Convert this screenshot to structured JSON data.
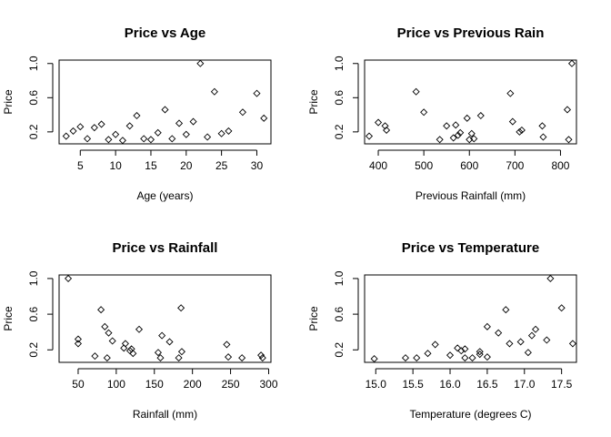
{
  "chart_data": [
    {
      "type": "scatter",
      "title": "Price vs Age",
      "xlabel": "Age (years)",
      "ylabel": "Price",
      "xlim": [
        2,
        32
      ],
      "ylim": [
        0.06,
        1.04
      ],
      "xticks": [
        5,
        10,
        15,
        20,
        25,
        30
      ],
      "yticks": [
        0.2,
        0.6,
        1.0
      ],
      "ytick_labels": [
        "0.2",
        "0.6",
        "1.0"
      ],
      "points": [
        {
          "x": 3,
          "y": 0.15
        },
        {
          "x": 4,
          "y": 0.21
        },
        {
          "x": 5,
          "y": 0.26
        },
        {
          "x": 6,
          "y": 0.12
        },
        {
          "x": 7,
          "y": 0.25
        },
        {
          "x": 8,
          "y": 0.29
        },
        {
          "x": 9,
          "y": 0.11
        },
        {
          "x": 10,
          "y": 0.17
        },
        {
          "x": 11,
          "y": 0.1
        },
        {
          "x": 12,
          "y": 0.27
        },
        {
          "x": 13,
          "y": 0.39
        },
        {
          "x": 14,
          "y": 0.12
        },
        {
          "x": 15,
          "y": 0.11
        },
        {
          "x": 16,
          "y": 0.19
        },
        {
          "x": 17,
          "y": 0.46
        },
        {
          "x": 18,
          "y": 0.12
        },
        {
          "x": 19,
          "y": 0.3
        },
        {
          "x": 20,
          "y": 0.17
        },
        {
          "x": 21,
          "y": 0.32
        },
        {
          "x": 22,
          "y": 1.0
        },
        {
          "x": 23,
          "y": 0.14
        },
        {
          "x": 24,
          "y": 0.67
        },
        {
          "x": 25,
          "y": 0.18
        },
        {
          "x": 26,
          "y": 0.21
        },
        {
          "x": 28,
          "y": 0.43
        },
        {
          "x": 30,
          "y": 0.65
        },
        {
          "x": 31,
          "y": 0.36
        }
      ]
    },
    {
      "type": "scatter",
      "title": "Price vs Previous Rain",
      "xlabel": "Previous Rainfall (mm)",
      "ylabel": "Price",
      "xlim": [
        370,
        835
      ],
      "ylim": [
        0.06,
        1.04
      ],
      "xticks": [
        400,
        500,
        600,
        700,
        800
      ],
      "yticks": [
        0.2,
        0.6,
        1.0
      ],
      "ytick_labels": [
        "0.2",
        "0.6",
        "1.0"
      ],
      "points": [
        {
          "x": 380,
          "y": 0.15
        },
        {
          "x": 400,
          "y": 0.31
        },
        {
          "x": 415,
          "y": 0.27
        },
        {
          "x": 418,
          "y": 0.22
        },
        {
          "x": 483,
          "y": 0.67
        },
        {
          "x": 500,
          "y": 0.43
        },
        {
          "x": 535,
          "y": 0.11
        },
        {
          "x": 550,
          "y": 0.27
        },
        {
          "x": 565,
          "y": 0.13
        },
        {
          "x": 570,
          "y": 0.28
        },
        {
          "x": 575,
          "y": 0.16
        },
        {
          "x": 580,
          "y": 0.19
        },
        {
          "x": 595,
          "y": 0.36
        },
        {
          "x": 600,
          "y": 0.11
        },
        {
          "x": 605,
          "y": 0.18
        },
        {
          "x": 610,
          "y": 0.12
        },
        {
          "x": 625,
          "y": 0.39
        },
        {
          "x": 690,
          "y": 0.65
        },
        {
          "x": 695,
          "y": 0.32
        },
        {
          "x": 710,
          "y": 0.2
        },
        {
          "x": 715,
          "y": 0.22
        },
        {
          "x": 760,
          "y": 0.27
        },
        {
          "x": 762,
          "y": 0.14
        },
        {
          "x": 815,
          "y": 0.46
        },
        {
          "x": 818,
          "y": 0.11
        },
        {
          "x": 825,
          "y": 1.0
        }
      ]
    },
    {
      "type": "scatter",
      "title": "Price vs Rainfall",
      "xlabel": "Rainfall (mm)",
      "ylabel": "Price",
      "xlim": [
        25,
        303
      ],
      "ylim": [
        0.06,
        1.04
      ],
      "xticks": [
        50,
        100,
        150,
        200,
        250,
        300
      ],
      "yticks": [
        0.2,
        0.6,
        1.0
      ],
      "ytick_labels": [
        "0.2",
        "0.6",
        "1.0"
      ],
      "points": [
        {
          "x": 37,
          "y": 1.0
        },
        {
          "x": 50,
          "y": 0.32
        },
        {
          "x": 50,
          "y": 0.27
        },
        {
          "x": 72,
          "y": 0.13
        },
        {
          "x": 80,
          "y": 0.65
        },
        {
          "x": 85,
          "y": 0.46
        },
        {
          "x": 88,
          "y": 0.11
        },
        {
          "x": 90,
          "y": 0.39
        },
        {
          "x": 95,
          "y": 0.3
        },
        {
          "x": 110,
          "y": 0.22
        },
        {
          "x": 112,
          "y": 0.27
        },
        {
          "x": 118,
          "y": 0.19
        },
        {
          "x": 120,
          "y": 0.21
        },
        {
          "x": 122,
          "y": 0.16
        },
        {
          "x": 130,
          "y": 0.43
        },
        {
          "x": 155,
          "y": 0.17
        },
        {
          "x": 158,
          "y": 0.11
        },
        {
          "x": 160,
          "y": 0.36
        },
        {
          "x": 170,
          "y": 0.29
        },
        {
          "x": 182,
          "y": 0.11
        },
        {
          "x": 185,
          "y": 0.67
        },
        {
          "x": 186,
          "y": 0.18
        },
        {
          "x": 245,
          "y": 0.26
        },
        {
          "x": 247,
          "y": 0.12
        },
        {
          "x": 265,
          "y": 0.11
        },
        {
          "x": 290,
          "y": 0.14
        },
        {
          "x": 292,
          "y": 0.11
        }
      ]
    },
    {
      "type": "scatter",
      "title": "Price vs Temperature",
      "xlabel": "Temperature (degrees C)",
      "ylabel": "Price",
      "xlim": [
        14.85,
        17.7
      ],
      "ylim": [
        0.06,
        1.04
      ],
      "xticks": [
        15.0,
        15.5,
        16.0,
        16.5,
        17.0,
        17.5
      ],
      "xtick_labels": [
        "15.0",
        "15.5",
        "16.0",
        "16.5",
        "17.0",
        "17.5"
      ],
      "yticks": [
        0.2,
        0.6,
        1.0
      ],
      "ytick_labels": [
        "0.2",
        "0.6",
        "1.0"
      ],
      "points": [
        {
          "x": 14.98,
          "y": 0.1
        },
        {
          "x": 15.4,
          "y": 0.11
        },
        {
          "x": 15.55,
          "y": 0.11
        },
        {
          "x": 15.7,
          "y": 0.16
        },
        {
          "x": 15.8,
          "y": 0.26
        },
        {
          "x": 16.0,
          "y": 0.14
        },
        {
          "x": 16.1,
          "y": 0.22
        },
        {
          "x": 16.15,
          "y": 0.19
        },
        {
          "x": 16.2,
          "y": 0.21
        },
        {
          "x": 16.2,
          "y": 0.11
        },
        {
          "x": 16.3,
          "y": 0.11
        },
        {
          "x": 16.4,
          "y": 0.18
        },
        {
          "x": 16.4,
          "y": 0.15
        },
        {
          "x": 16.5,
          "y": 0.46
        },
        {
          "x": 16.5,
          "y": 0.12
        },
        {
          "x": 16.65,
          "y": 0.39
        },
        {
          "x": 16.75,
          "y": 0.65
        },
        {
          "x": 16.8,
          "y": 0.27
        },
        {
          "x": 16.95,
          "y": 0.29
        },
        {
          "x": 17.05,
          "y": 0.17
        },
        {
          "x": 17.1,
          "y": 0.36
        },
        {
          "x": 17.15,
          "y": 0.43
        },
        {
          "x": 17.3,
          "y": 0.31
        },
        {
          "x": 17.35,
          "y": 1.0
        },
        {
          "x": 17.5,
          "y": 0.67
        },
        {
          "x": 17.65,
          "y": 0.27
        }
      ]
    }
  ]
}
